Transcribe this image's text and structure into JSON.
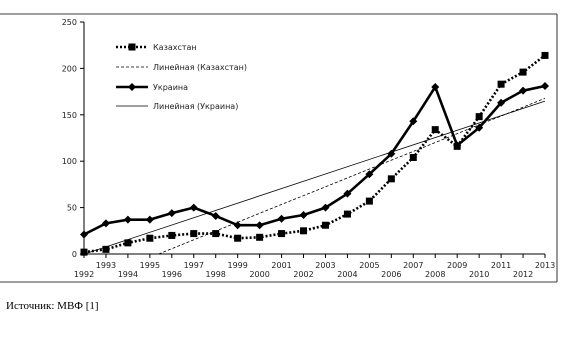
{
  "chart_data": {
    "type": "line",
    "title": "",
    "xlabel": "",
    "ylabel": "",
    "ylim": [
      0,
      250
    ],
    "yticks": [
      0,
      50,
      100,
      150,
      200,
      250
    ],
    "x": [
      1992,
      1993,
      1994,
      1995,
      1996,
      1997,
      1998,
      1999,
      2000,
      2001,
      2002,
      2003,
      2004,
      2005,
      2006,
      2007,
      2008,
      2009,
      2010,
      2011,
      2012,
      2013
    ],
    "x_tick_labels": [
      "1992",
      "1993",
      "1994",
      "1995",
      "1996",
      "1997",
      "1998",
      "1999",
      "2000",
      "2001",
      "2002",
      "2003",
      "2004",
      "2005",
      "2006",
      "2007",
      "2008",
      "2009",
      "2010",
      "2011",
      "2012",
      "2013"
    ],
    "grid": false,
    "legend_position": "top-left",
    "series": [
      {
        "name": "Казахстан",
        "style": "dotted-square",
        "values": [
          2,
          5,
          12,
          17,
          20,
          22,
          22,
          17,
          18,
          22,
          25,
          31,
          43,
          57,
          81,
          104,
          134,
          116,
          148,
          183,
          196,
          214
        ]
      },
      {
        "name": "Линейная (Казахстан)",
        "style": "thin-dashed",
        "trend_of": 0
      },
      {
        "name": "Украина",
        "style": "thick-diamond",
        "values": [
          21,
          33,
          37,
          37,
          44,
          50,
          41,
          31,
          31,
          38,
          42,
          50,
          65,
          86,
          108,
          143,
          180,
          117,
          136,
          163,
          176,
          181
        ]
      },
      {
        "name": "Линейная (Украина)",
        "style": "thin-solid",
        "trend_of": 2
      }
    ]
  },
  "source_text": "Источник: МВФ [1]",
  "colors": {
    "series": "#000000",
    "frame": "#000000"
  }
}
